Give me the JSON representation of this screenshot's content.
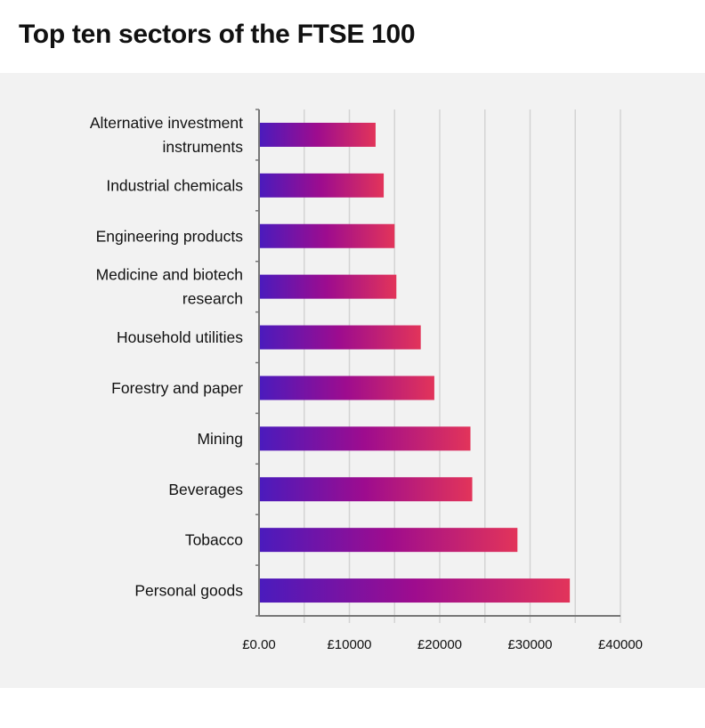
{
  "chart_data": {
    "type": "bar",
    "orientation": "horizontal",
    "title": "Top ten sectors of the FTSE 100",
    "categories": [
      "Alternative investment instruments",
      "Industrial chemicals",
      "Engineering products",
      "Medicine and biotech research",
      "Household utilities",
      "Forestry and paper",
      "Mining",
      "Beverages",
      "Tobacco",
      "Personal goods"
    ],
    "category_lines": [
      [
        "Alternative investment",
        "instruments"
      ],
      [
        "Industrial chemicals"
      ],
      [
        "Engineering products"
      ],
      [
        "Medicine and biotech",
        "research"
      ],
      [
        "Household utilities"
      ],
      [
        "Forestry and paper"
      ],
      [
        "Mining"
      ],
      [
        "Beverages"
      ],
      [
        "Tobacco"
      ],
      [
        "Personal goods"
      ]
    ],
    "values": [
      12900,
      13800,
      15000,
      15200,
      17900,
      19400,
      23400,
      23600,
      28600,
      34400
    ],
    "xlim": [
      0,
      40000
    ],
    "x_ticks": [
      0,
      10000,
      20000,
      30000,
      40000
    ],
    "x_tick_labels": [
      "£0.00",
      "£10000",
      "£20000",
      "£30000",
      "£40000"
    ],
    "gridlines_every": 5000,
    "grid": true,
    "xlabel": "",
    "ylabel": "",
    "bar_gradient": [
      "#4a1bbd",
      "#9e0c8e",
      "#e2345a"
    ],
    "background": "#f2f2f2"
  }
}
